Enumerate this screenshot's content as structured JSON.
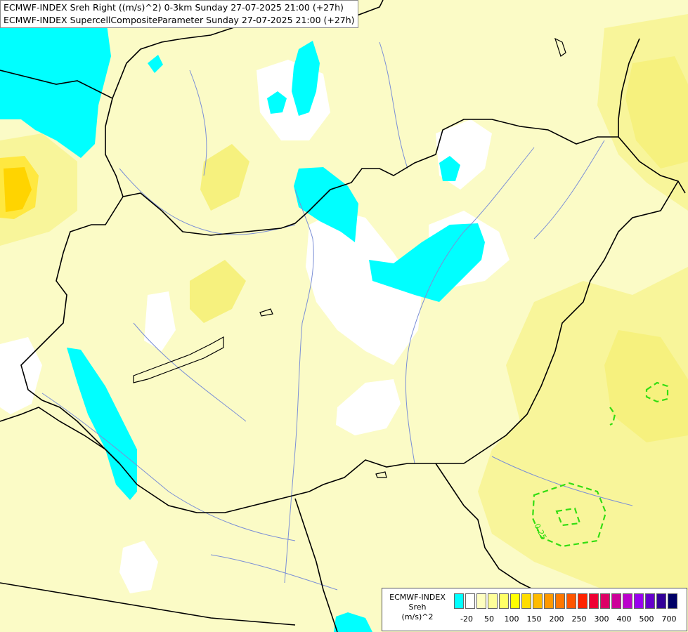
{
  "header": {
    "line1": "ECMWF-INDEX Sreh Right ((m/s)^2) 0-3km Sunday 27-07-2025 21:00 (+27h)",
    "line2": "ECMWF-INDEX SupercellCompositeParameter Sunday 27-07-2025 21:00 (+27h)"
  },
  "contour_label": "0.25",
  "legend": {
    "title_line1": "ECMWF-INDEX",
    "title_line2": "Sreh",
    "title_line3": "(m/s)^2",
    "colors": [
      "#00ffff",
      "#ffffff",
      "#ffffc0",
      "#ffff99",
      "#ffff66",
      "#ffff00",
      "#ffdd00",
      "#ffbb00",
      "#ff9900",
      "#ff7700",
      "#ff5500",
      "#ff2200",
      "#ee0033",
      "#dd0066",
      "#cc0099",
      "#bb00cc",
      "#9900ee",
      "#6600cc",
      "#330099",
      "#000066"
    ],
    "ticks": [
      "-20",
      "50",
      "100",
      "150",
      "200",
      "250",
      "300",
      "400",
      "500",
      "700"
    ]
  }
}
